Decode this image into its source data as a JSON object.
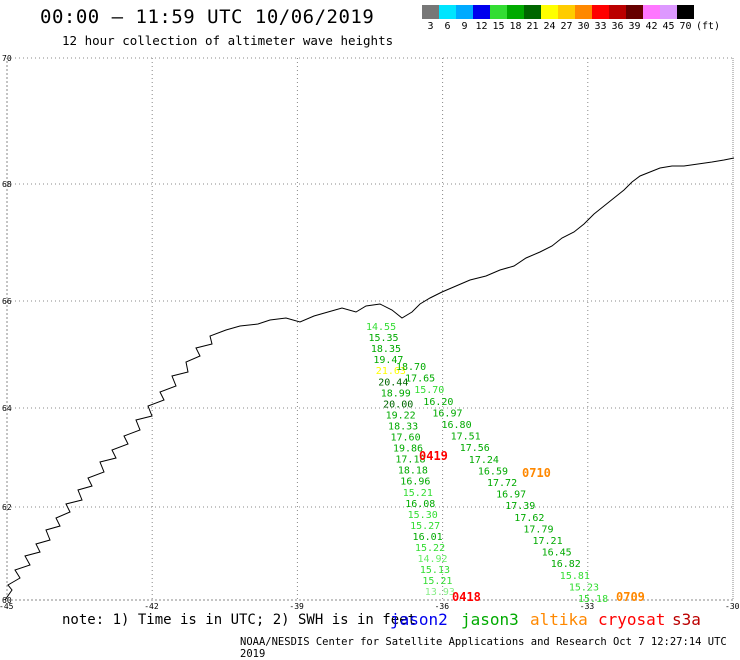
{
  "header": {
    "title": "00:00 – 11:59 UTC 10/06/2019",
    "subtitle": "12 hour collection of altimeter wave heights"
  },
  "legend": {
    "unit": "(ft)",
    "items": [
      {
        "label": "3",
        "color": "#777777"
      },
      {
        "label": "6",
        "color": "#00e5ff"
      },
      {
        "label": "9",
        "color": "#00aaff"
      },
      {
        "label": "12",
        "color": "#0000ee"
      },
      {
        "label": "15",
        "color": "#33dd33"
      },
      {
        "label": "18",
        "color": "#00aa00"
      },
      {
        "label": "21",
        "color": "#006600"
      },
      {
        "label": "24",
        "color": "#ffff00"
      },
      {
        "label": "27",
        "color": "#ffcc00"
      },
      {
        "label": "30",
        "color": "#ff8800"
      },
      {
        "label": "33",
        "color": "#ff0000"
      },
      {
        "label": "36",
        "color": "#bb0000"
      },
      {
        "label": "39",
        "color": "#660000"
      },
      {
        "label": "42",
        "color": "#ff77ff"
      },
      {
        "label": "45",
        "color": "#dd99ff"
      },
      {
        "label": "70",
        "color": "#000000"
      }
    ]
  },
  "map": {
    "lat_labels": [
      {
        "text": "70",
        "lat": 70
      },
      {
        "text": "68",
        "lat": 68
      },
      {
        "text": "66",
        "lat": 66
      },
      {
        "text": "64",
        "lat": 64
      },
      {
        "text": "62",
        "lat": 62
      },
      {
        "text": "60",
        "lat": 60
      }
    ],
    "lon_labels": [
      {
        "text": "-45",
        "lon": -45
      },
      {
        "text": "-42",
        "lon": -42
      },
      {
        "text": "-39",
        "lon": -39
      },
      {
        "text": "-36",
        "lon": -36
      },
      {
        "text": "-33",
        "lon": -33
      },
      {
        "text": "-30",
        "lon": -30
      }
    ]
  },
  "tracks": [
    {
      "label": "0419",
      "label_color": "#ff0000",
      "points": [
        {
          "v": "14.55",
          "c": "#33dd33"
        },
        {
          "v": "15.35",
          "c": "#00aa00"
        },
        {
          "v": "18.35",
          "c": "#00aa00"
        },
        {
          "v": "19.47",
          "c": "#00aa00"
        },
        {
          "v": "21.63",
          "c": "#ffff00"
        },
        {
          "v": "20.44",
          "c": "#006600"
        },
        {
          "v": "18.99",
          "c": "#00aa00"
        },
        {
          "v": "20.00",
          "c": "#006600"
        },
        {
          "v": "19.22",
          "c": "#00aa00"
        },
        {
          "v": "18.33",
          "c": "#00aa00"
        },
        {
          "v": "17.60",
          "c": "#00aa00"
        },
        {
          "v": "19.86",
          "c": "#00aa00"
        },
        {
          "v": "17.18",
          "c": "#00aa00"
        },
        {
          "v": "18.18",
          "c": "#00aa00"
        },
        {
          "v": "16.96",
          "c": "#00aa00"
        },
        {
          "v": "15.21",
          "c": "#33dd33"
        },
        {
          "v": "16.08",
          "c": "#00aa00"
        },
        {
          "v": "15.30",
          "c": "#33dd33"
        },
        {
          "v": "15.27",
          "c": "#33dd33"
        },
        {
          "v": "16.01",
          "c": "#00aa00"
        },
        {
          "v": "15.22",
          "c": "#33dd33"
        },
        {
          "v": "14.92",
          "c": "#66ee66"
        },
        {
          "v": "15.13",
          "c": "#33dd33"
        },
        {
          "v": "15.21",
          "c": "#33dd33"
        },
        {
          "v": "13.93",
          "c": "#88ee88"
        }
      ]
    },
    {
      "label": "0418",
      "label_color": "#ff0000"
    },
    {
      "label": "0710",
      "label_color": "#ff8800",
      "points": [
        {
          "v": "18.70",
          "c": "#00aa00"
        },
        {
          "v": "17.65",
          "c": "#00aa00"
        },
        {
          "v": "15.70",
          "c": "#33dd33"
        },
        {
          "v": "16.20",
          "c": "#00aa00"
        },
        {
          "v": "16.97",
          "c": "#00aa00"
        },
        {
          "v": "16.80",
          "c": "#00aa00"
        },
        {
          "v": "17.51",
          "c": "#00aa00"
        },
        {
          "v": "17.56",
          "c": "#00aa00"
        },
        {
          "v": "17.24",
          "c": "#00aa00"
        },
        {
          "v": "16.59",
          "c": "#00aa00"
        },
        {
          "v": "17.72",
          "c": "#00aa00"
        },
        {
          "v": "16.97",
          "c": "#00aa00"
        },
        {
          "v": "17.39",
          "c": "#00aa00"
        },
        {
          "v": "17.62",
          "c": "#00aa00"
        },
        {
          "v": "17.79",
          "c": "#00aa00"
        },
        {
          "v": "17.21",
          "c": "#00aa00"
        },
        {
          "v": "16.45",
          "c": "#00aa00"
        },
        {
          "v": "16.82",
          "c": "#00aa00"
        },
        {
          "v": "15.81",
          "c": "#33dd33"
        },
        {
          "v": "15.23",
          "c": "#33dd33"
        },
        {
          "v": "15.18",
          "c": "#33dd33"
        }
      ]
    },
    {
      "label": "0709",
      "label_color": "#ff8800"
    }
  ],
  "footer": {
    "note": "note: 1) Time is in UTC; 2) SWH is in feet",
    "satellites": [
      {
        "name": "jason2",
        "color": "#0000ee"
      },
      {
        "name": "jason3",
        "color": "#00aa00"
      },
      {
        "name": "altika",
        "color": "#ff8800"
      },
      {
        "name": "cryosat",
        "color": "#ff0000"
      },
      {
        "name": "s3a",
        "color": "#bb0000"
      }
    ],
    "credit": "NOAA/NESDIS Center for Satellite Applications and Research   Oct  7 12:27:14 UTC 2019"
  }
}
